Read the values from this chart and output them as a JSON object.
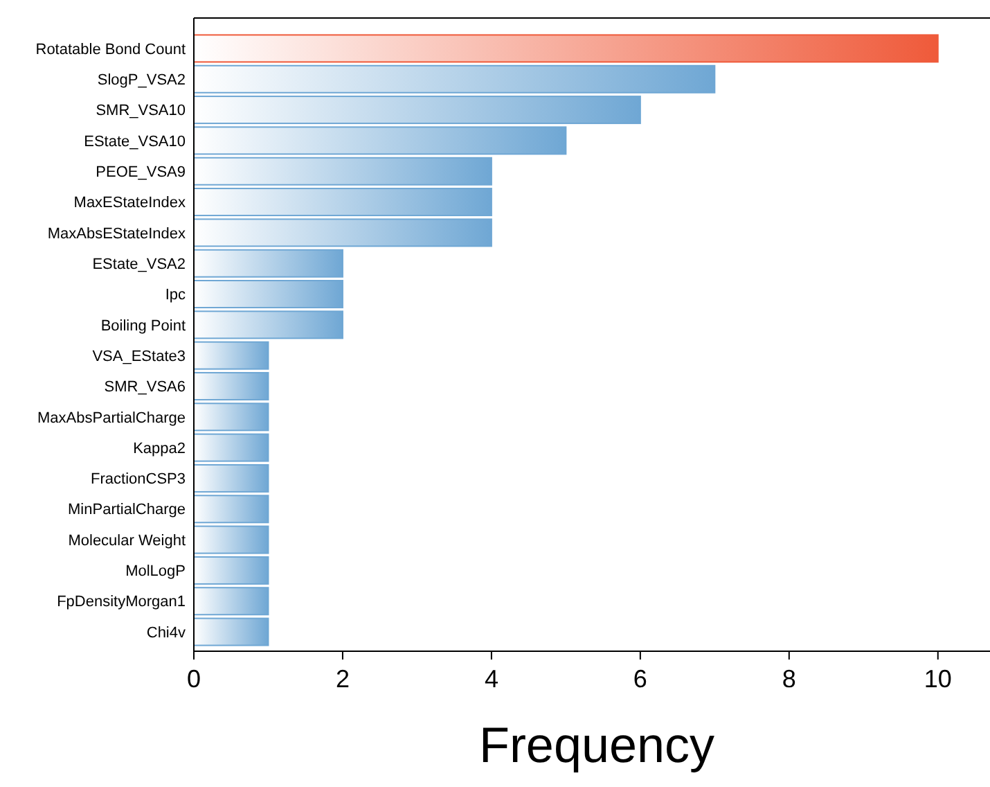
{
  "chart_data": {
    "type": "bar",
    "orientation": "horizontal",
    "xlabel": "Frequency",
    "categories": [
      "Rotatable Bond Count",
      "SlogP_VSA2",
      "SMR_VSA10",
      "EState_VSA10",
      "PEOE_VSA9",
      "MaxEStateIndex",
      "MaxAbsEStateIndex",
      "EState_VSA2",
      "Ipc",
      "Boiling Point",
      "VSA_EState3",
      "SMR_VSA6",
      "MaxAbsPartialCharge",
      "Kappa2",
      "FractionCSP3",
      "MinPartialCharge",
      "Molecular Weight",
      "MolLogP",
      "FpDensityMorgan1",
      "Chi4v"
    ],
    "values": [
      10,
      7,
      6,
      5,
      4,
      4,
      4,
      2,
      2,
      2,
      1,
      1,
      1,
      1,
      1,
      1,
      1,
      1,
      1,
      1
    ],
    "colors": [
      "#ef5a3a",
      "#6fa7d4",
      "#6fa7d4",
      "#6fa7d4",
      "#6fa7d4",
      "#6fa7d4",
      "#6fa7d4",
      "#6fa7d4",
      "#6fa7d4",
      "#6fa7d4",
      "#6fa7d4",
      "#6fa7d4",
      "#6fa7d4",
      "#6fa7d4",
      "#6fa7d4",
      "#6fa7d4",
      "#6fa7d4",
      "#6fa7d4",
      "#6fa7d4",
      "#6fa7d4"
    ],
    "xlim": [
      0,
      10.7
    ],
    "xticks": [
      0,
      2,
      4,
      6,
      8,
      10
    ],
    "grid": false
  }
}
